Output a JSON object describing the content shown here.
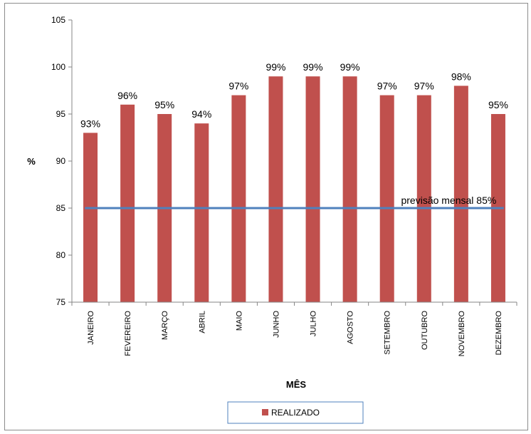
{
  "chart_data": {
    "type": "bar",
    "categories": [
      "JANEIRO",
      "FEVEREIRO",
      "MARÇO",
      "ABRIL",
      "MAIO",
      "JUNHO",
      "JULHO",
      "AGOSTO",
      "SETEMBRO",
      "OUTUBRO",
      "NOVEMBRO",
      "DEZEMBRO"
    ],
    "series": [
      {
        "name": "REALIZADO",
        "values": [
          93,
          96,
          95,
          94,
          97,
          99,
          99,
          99,
          97,
          97,
          98,
          95
        ],
        "labels": [
          "93%",
          "96%",
          "95%",
          "94%",
          "97%",
          "99%",
          "99%",
          "99%",
          "97%",
          "97%",
          "98%",
          "95%"
        ],
        "color": "#c0504d"
      }
    ],
    "reference_line": {
      "value": 85,
      "label": "previsão mensal 85%",
      "color": "#4f81bd"
    },
    "xlabel": "MÊS",
    "ylabel": "%",
    "ylim": [
      75,
      105
    ],
    "yticks": [
      75,
      80,
      85,
      90,
      95,
      100,
      105
    ],
    "grid": false,
    "legend": "bottom"
  }
}
